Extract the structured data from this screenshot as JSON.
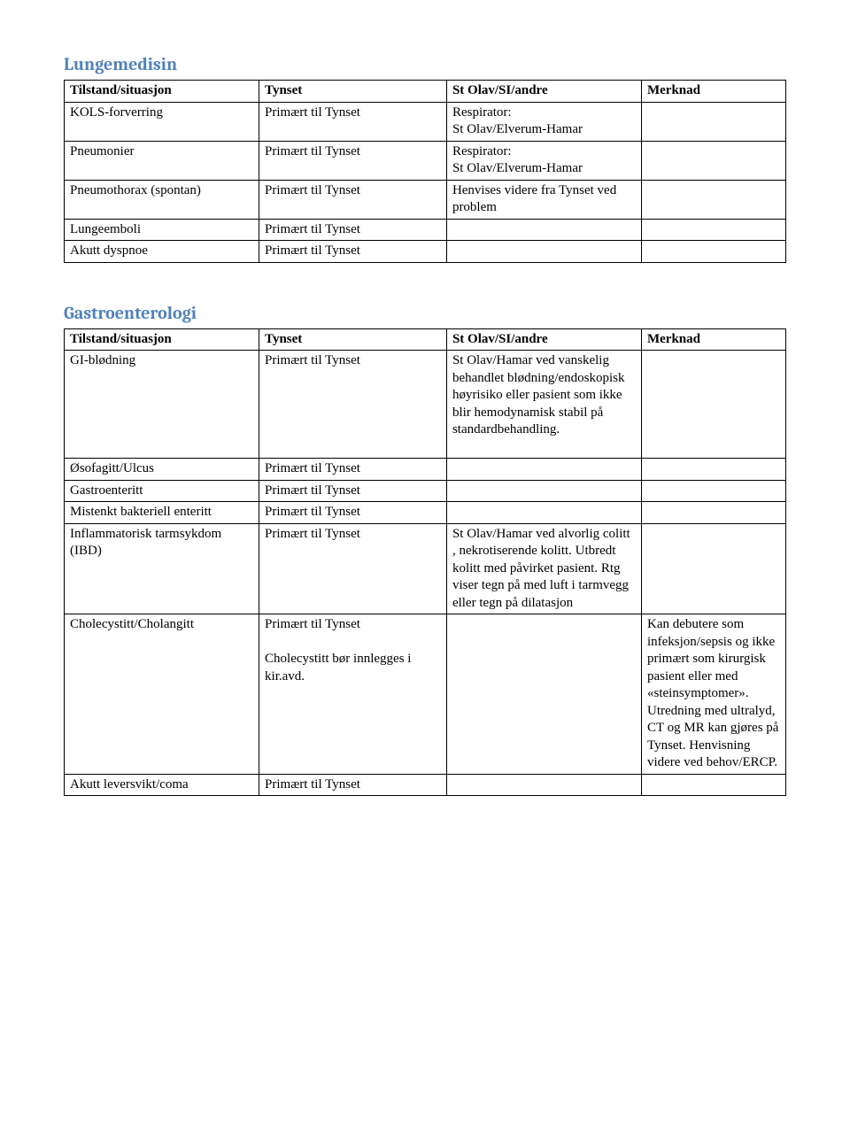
{
  "colors": {
    "heading": "#4f81bd",
    "border": "#000000",
    "text": "#000000",
    "background": "#ffffff"
  },
  "typography": {
    "body_font": "Times New Roman",
    "heading_font": "Cambria",
    "body_size_pt": 11,
    "heading_size_pt": 15,
    "heading_weight": "bold"
  },
  "columns": [
    "Tilstand/situasjon",
    "Tynset",
    "St Olav/SI/andre",
    "Merknad"
  ],
  "sections": [
    {
      "title": "Lungemedisin",
      "rows": [
        {
          "c1": "KOLS-forverring",
          "c2": "Primært til Tynset",
          "c3": "Respirator:\nSt Olav/Elverum-Hamar",
          "c4": ""
        },
        {
          "c1": "Pneumonier",
          "c2": "Primært til Tynset",
          "c3": "Respirator:\nSt Olav/Elverum-Hamar",
          "c4": ""
        },
        {
          "c1": "Pneumothorax (spontan)",
          "c2": "Primært til Tynset",
          "c3": "Henvises videre fra Tynset ved problem",
          "c4": ""
        },
        {
          "c1": "Lungeemboli",
          "c2": "Primært til Tynset",
          "c3": "",
          "c4": ""
        },
        {
          "c1": "Akutt dyspnoe",
          "c2": "Primært til Tynset",
          "c3": "",
          "c4": ""
        }
      ]
    },
    {
      "title": "Gastroenterologi",
      "rows": [
        {
          "c1": "GI-blødning",
          "c2": "Primært til Tynset",
          "c3": "St Olav/Hamar ved vanskelig behandlet blødning/endoskopisk høyrisiko eller pasient som ikke blir hemodynamisk stabil på standardbehandling.\n\n",
          "c4": ""
        },
        {
          "c1": "Øsofagitt/Ulcus",
          "c2": "Primært til Tynset",
          "c3": "",
          "c4": ""
        },
        {
          "c1": "Gastroenteritt",
          "c2": "Primært til Tynset",
          "c3": "",
          "c4": ""
        },
        {
          "c1": "Mistenkt bakteriell enteritt",
          "c2": "Primært til Tynset",
          "c3": "",
          "c4": ""
        },
        {
          "c1": "Inflammatorisk tarmsykdom (IBD)",
          "c2": "Primært til Tynset",
          "c3": "St Olav/Hamar ved alvorlig colitt , nekrotiserende kolitt. Utbredt kolitt med påvirket pasient. Rtg viser tegn på med luft i tarmvegg eller tegn på dilatasjon\n",
          "c4": ""
        },
        {
          "c1": "Cholecystitt/Cholangitt",
          "c2": "Primært til Tynset\n\nCholecystitt bør innlegges i kir.avd.",
          "c3": "",
          "c4": "Kan debutere som infeksjon/sepsis og ikke primært som kirurgisk pasient eller med «steinsymptomer». Utredning med ultralyd, CT og MR kan gjøres på Tynset. Henvisning videre ved behov/ERCP.\n"
        },
        {
          "c1": "Akutt leversvikt/coma",
          "c2": "Primært til Tynset",
          "c3": "",
          "c4": ""
        }
      ]
    }
  ]
}
